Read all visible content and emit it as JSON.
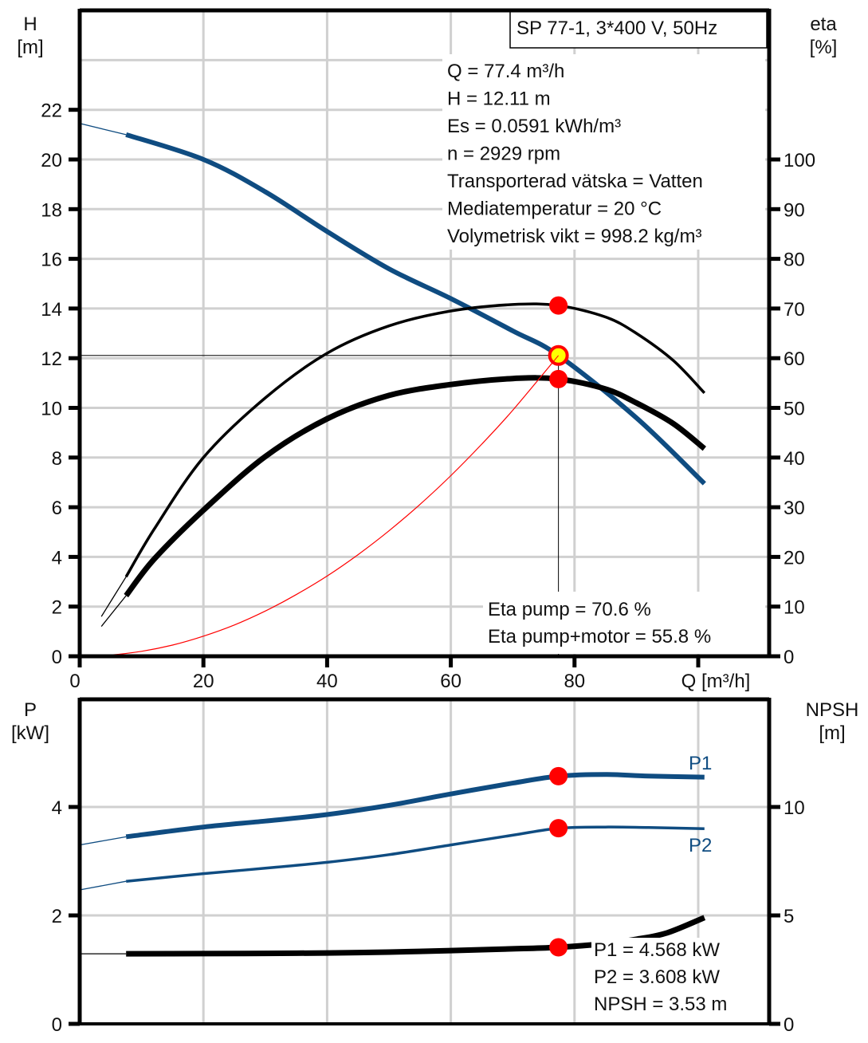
{
  "chart_data": [
    {
      "type": "line",
      "title": "SP 77-1, 3*400 V, 50Hz",
      "xlabel": "Q [m³/h]",
      "ylabel": "H\n[m]",
      "y2label": "eta\n[%]",
      "xlim": [
        0,
        110
      ],
      "ylim": [
        0,
        26
      ],
      "y2lim": [
        0,
        130
      ],
      "x_ticks": [
        "0",
        "20",
        "40",
        "60",
        "80"
      ],
      "x_tick_values": [
        0,
        20,
        40,
        60,
        80
      ],
      "y_ticks": [
        "0",
        "2",
        "4",
        "6",
        "8",
        "10",
        "12",
        "14",
        "16",
        "18",
        "20",
        "22"
      ],
      "y_tick_values": [
        0,
        2,
        4,
        6,
        8,
        10,
        12,
        14,
        16,
        18,
        20,
        22
      ],
      "y2_ticks": [
        "0",
        "10",
        "20",
        "30",
        "40",
        "50",
        "60",
        "70",
        "80",
        "90",
        "100"
      ],
      "y2_tick_values": [
        0,
        10,
        20,
        30,
        40,
        50,
        60,
        70,
        80,
        90,
        100
      ],
      "grid": true,
      "info_lines": [
        "Q = 77.4 m³/h",
        "H = 12.11 m",
        "Es = 0.0591 kWh/m³",
        "n = 2929 rpm",
        "Transporterad vätska = Vatten",
        "Mediatemperatur = 20 °C",
        "Volymetrisk vikt = 998.2 kg/m³"
      ],
      "eta_lines": [
        "Eta pump = 70.6 %",
        "Eta pump+motor = 55.8 %"
      ],
      "duty_point": {
        "Q": 77.4,
        "H": 12.11,
        "eta_pump": 70.6,
        "eta_total": 55.8
      },
      "series": [
        {
          "name": "H",
          "axis": "left",
          "color": "#0f4c81",
          "extension": {
            "x": [
              0,
              7.5
            ],
            "y": [
              21.45,
              21.0
            ]
          },
          "x": [
            7.5,
            20,
            30,
            40,
            50,
            60,
            70,
            77.4,
            90,
            101
          ],
          "y": [
            21.0,
            20.0,
            18.7,
            17.1,
            15.6,
            14.4,
            13.1,
            12.11,
            9.6,
            6.95
          ]
        },
        {
          "name": "Eta pump",
          "axis": "right",
          "color": "#000000",
          "extension": {
            "x": [
              3.5,
              7.5
            ],
            "y": [
              8.0,
              16.0
            ]
          },
          "x": [
            7.5,
            12,
            20,
            30,
            40,
            50,
            60,
            70,
            77.4,
            85,
            90,
            96,
            101
          ],
          "y": [
            16.0,
            25.5,
            40.0,
            52.0,
            61.0,
            66.5,
            69.5,
            70.8,
            70.6,
            68.3,
            65.0,
            59.5,
            53.0
          ]
        },
        {
          "name": "Eta pump+motor",
          "axis": "right",
          "color": "#000000",
          "extension": {
            "x": [
              3.5,
              7.5
            ],
            "y": [
              6.0,
              12.2
            ]
          },
          "x": [
            7.5,
            12,
            20,
            30,
            40,
            50,
            60,
            70,
            77.4,
            85,
            90,
            96,
            101
          ],
          "y": [
            12.2,
            19.5,
            29.4,
            40.2,
            47.8,
            52.5,
            54.7,
            55.9,
            55.8,
            53.8,
            51.0,
            46.8,
            41.8
          ]
        },
        {
          "name": "System curve",
          "axis": "left",
          "color": "#ff0000",
          "x": [
            0,
            5,
            10,
            15,
            20,
            25,
            30,
            35,
            40,
            45,
            50,
            55,
            60,
            65,
            70,
            77.4
          ],
          "y": [
            0,
            0.05,
            0.2,
            0.45,
            0.81,
            1.26,
            1.82,
            2.48,
            3.23,
            4.09,
            5.05,
            6.11,
            7.27,
            8.54,
            9.9,
            12.11
          ]
        }
      ],
      "markers": [
        {
          "name": "duty-point-eta-pump",
          "axis": "right",
          "x": 77.4,
          "y": 70.6
        },
        {
          "name": "duty-point-head",
          "axis": "left",
          "x": 77.4,
          "y": 12.11
        },
        {
          "name": "duty-point-eta-total",
          "axis": "right",
          "x": 77.4,
          "y": 55.8
        }
      ]
    },
    {
      "type": "line",
      "ylabel": "P\n[kW]",
      "y2label": "NPSH\n[m]",
      "xlim": [
        0,
        110
      ],
      "ylim": [
        0,
        6
      ],
      "y2lim": [
        0,
        15
      ],
      "y_ticks": [
        "0",
        "2",
        "4"
      ],
      "y_tick_values": [
        0,
        2,
        4
      ],
      "y2_ticks": [
        "0",
        "5",
        "10"
      ],
      "y2_tick_values": [
        0,
        5,
        10
      ],
      "grid": true,
      "info_lines": [
        "P1 = 4.568 kW",
        "P2 = 3.608 kW",
        "NPSH = 3.53 m"
      ],
      "series": [
        {
          "name": "P1",
          "label": "P1",
          "axis": "left",
          "color": "#0f4c81",
          "extension": {
            "x": [
              0,
              7.5
            ],
            "y": [
              3.3,
              3.45
            ]
          },
          "x": [
            7.5,
            20,
            30,
            40,
            50,
            60,
            70,
            77.4,
            85,
            92,
            101
          ],
          "y": [
            3.45,
            3.63,
            3.74,
            3.86,
            4.03,
            4.24,
            4.44,
            4.568,
            4.6,
            4.57,
            4.55
          ]
        },
        {
          "name": "P2",
          "label": "P2",
          "axis": "left",
          "color": "#0f4c81",
          "extension": {
            "x": [
              0,
              7.5
            ],
            "y": [
              2.47,
              2.63
            ]
          },
          "x": [
            7.5,
            20,
            30,
            40,
            50,
            60,
            70,
            77.4,
            85,
            92,
            101
          ],
          "y": [
            2.63,
            2.77,
            2.87,
            2.98,
            3.12,
            3.3,
            3.48,
            3.608,
            3.63,
            3.62,
            3.6
          ]
        },
        {
          "name": "NPSH",
          "axis": "right",
          "color": "#000000",
          "extension": {
            "x": [
              0,
              7.5
            ],
            "y": [
              3.23,
              3.23
            ]
          },
          "x": [
            7.5,
            20,
            30,
            40,
            50,
            60,
            70,
            77.4,
            85,
            90,
            95,
            101
          ],
          "y": [
            3.23,
            3.24,
            3.25,
            3.27,
            3.31,
            3.38,
            3.46,
            3.53,
            3.7,
            3.9,
            4.2,
            4.9
          ]
        }
      ],
      "markers": [
        {
          "name": "duty-point-p1",
          "axis": "left",
          "x": 77.4,
          "y": 4.568
        },
        {
          "name": "duty-point-p2",
          "axis": "left",
          "x": 77.4,
          "y": 3.608
        },
        {
          "name": "duty-point-npsh",
          "axis": "right",
          "x": 77.4,
          "y": 3.53
        }
      ]
    }
  ]
}
